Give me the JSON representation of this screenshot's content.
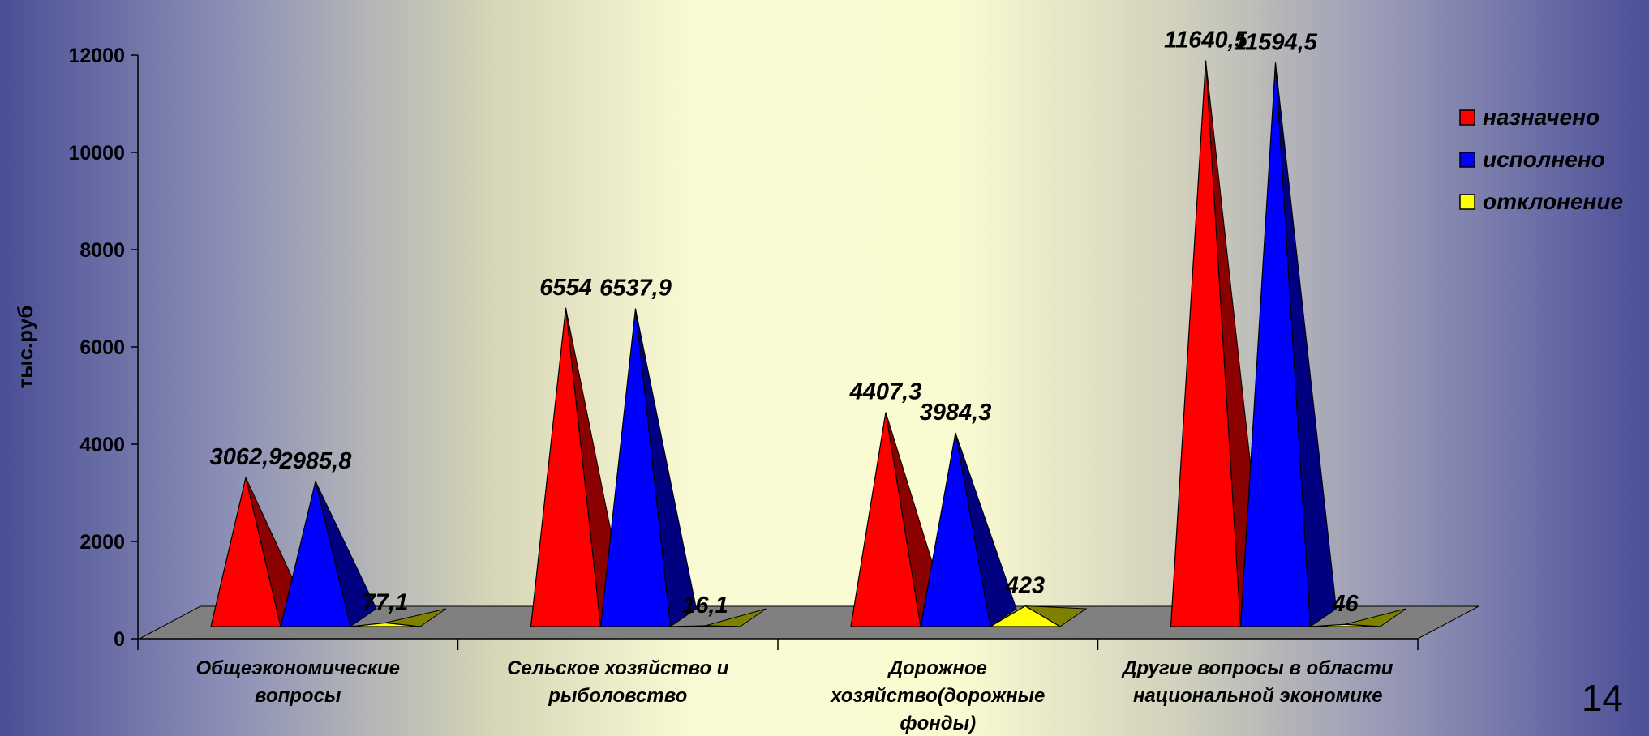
{
  "slide": {
    "page_number": "14"
  },
  "chart_data": {
    "type": "bar",
    "style": "3d-pyramid",
    "title": "",
    "xlabel": "",
    "ylabel": "тыс.руб",
    "ylim": [
      0,
      12000
    ],
    "yticks": [
      "0",
      "2000",
      "4000",
      "6000",
      "8000",
      "10000",
      "12000"
    ],
    "categories": [
      [
        "Общеэкономические",
        "вопросы"
      ],
      [
        "Сельское хозяйство и",
        "рыболовство"
      ],
      [
        "Дорожное",
        "хозяйство(дорожные",
        "фонды)"
      ],
      [
        "Другие вопросы в области",
        "национальной  экономике"
      ]
    ],
    "series": [
      {
        "name": "назначено",
        "color": "#ff0000",
        "dark": "#8b0000",
        "values": [
          3062.9,
          6554,
          4407.3,
          11640.5
        ],
        "labels": [
          "3062,9",
          "6554",
          "4407,3",
          "11640,5"
        ]
      },
      {
        "name": "исполнено",
        "color": "#0000ff",
        "dark": "#000080",
        "values": [
          2985.8,
          6537.9,
          3984.3,
          11594.5
        ],
        "labels": [
          "2985,8",
          "6537,9",
          "3984,3",
          "11594,5"
        ]
      },
      {
        "name": "отклонение",
        "color": "#ffff00",
        "dark": "#808000",
        "values": [
          77.1,
          16.1,
          423,
          46
        ],
        "labels": [
          "77,1",
          "16,1",
          "423",
          "46"
        ]
      }
    ],
    "legend_position": "right"
  }
}
